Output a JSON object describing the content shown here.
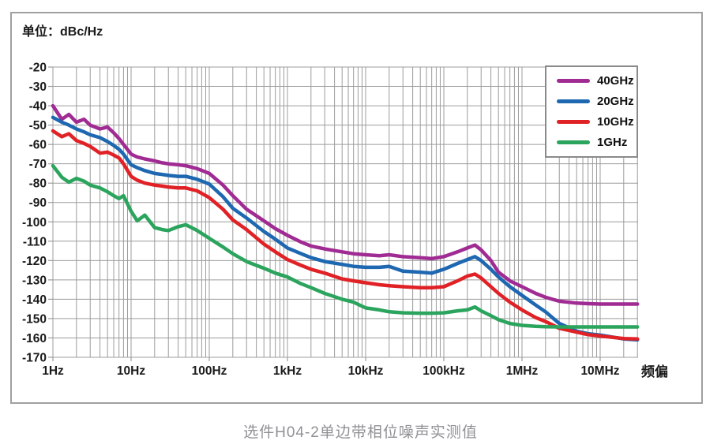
{
  "unit_label": "单位：dBc/Hz",
  "caption": "选件H04-2单边带相位噪声实测值",
  "colors": {
    "frame_border": "#a0a0a0",
    "legend_border": "#8a8a8a",
    "grid": "#9c9c9c",
    "axis_text": "#1a1a1a",
    "caption_text": "#8f9194"
  },
  "chart_data": {
    "type": "line",
    "title": "选件H04-2单边带相位噪声实测值",
    "x_axis": {
      "label": "频偏",
      "scale": "log",
      "min": 1,
      "max": 30000000,
      "tick_values": [
        1,
        10,
        100,
        1000,
        10000,
        100000,
        1000000,
        10000000
      ],
      "tick_labels": [
        "1Hz",
        "10Hz",
        "100Hz",
        "1kHz",
        "10kHz",
        "100kHz",
        "1MHz",
        "10MHz"
      ]
    },
    "y_axis": {
      "unit": "dBc/Hz",
      "min": -170,
      "max": -20,
      "tick_step": 10,
      "tick_values": [
        -20,
        -30,
        -40,
        -50,
        -60,
        -70,
        -80,
        -90,
        -100,
        -110,
        -120,
        -130,
        -140,
        -150,
        -160,
        -170
      ]
    },
    "grid": "log-minor-on",
    "legend_position": "top-right",
    "frequencies_hz": [
      1,
      1.3,
      1.6,
      2,
      2.5,
      3,
      4,
      5,
      6,
      7,
      8,
      10,
      12,
      15,
      20,
      25,
      30,
      40,
      50,
      70,
      100,
      150,
      200,
      300,
      500,
      700,
      1000,
      1500,
      2000,
      3000,
      5000,
      7000,
      10000,
      15000,
      20000,
      30000,
      50000,
      70000,
      100000,
      150000,
      200000,
      250000,
      300000,
      400000,
      500000,
      700000,
      1000000,
      1500000,
      2000000,
      3000000,
      5000000,
      7000000,
      10000000,
      20000000,
      30000000
    ],
    "series": [
      {
        "name": "40GHz",
        "color": "#A02B93",
        "values": [
          -40,
          -47,
          -44.5,
          -48.5,
          -47,
          -50,
          -52,
          -51,
          -54,
          -57,
          -60,
          -65,
          -66.5,
          -67.5,
          -68.5,
          -69.5,
          -70,
          -70.5,
          -71,
          -72.5,
          -75,
          -81,
          -86.5,
          -93.5,
          -99.5,
          -103.5,
          -107,
          -110.5,
          -112.5,
          -114,
          -115.5,
          -116.5,
          -117,
          -117.5,
          -117,
          -118,
          -118.5,
          -119,
          -118,
          -115.5,
          -113.5,
          -112,
          -114.5,
          -120,
          -126,
          -130.5,
          -133.5,
          -137,
          -139,
          -141,
          -142,
          -142.3,
          -142.5,
          -142.5,
          -142.5
        ]
      },
      {
        "name": "20GHz",
        "color": "#1E67B1",
        "values": [
          -46,
          -48.5,
          -50,
          -52,
          -53.5,
          -55,
          -56.5,
          -58.5,
          -60.5,
          -62.5,
          -65,
          -70.5,
          -72,
          -73.5,
          -75,
          -75.5,
          -76,
          -76.5,
          -76.5,
          -78,
          -80.5,
          -87,
          -93,
          -98,
          -105,
          -109,
          -113.5,
          -116.5,
          -118.5,
          -120.5,
          -122,
          -123,
          -123.5,
          -123.5,
          -123,
          -125.5,
          -126,
          -126.5,
          -124.5,
          -121.5,
          -119.5,
          -118,
          -120,
          -124.5,
          -128.5,
          -133.5,
          -138,
          -143,
          -146.5,
          -152.5,
          -156.5,
          -157.8,
          -158.5,
          -160.5,
          -161
        ]
      },
      {
        "name": "10GHz",
        "color": "#E02126",
        "values": [
          -53,
          -56,
          -54.5,
          -58,
          -59.5,
          -61,
          -64.5,
          -64,
          -65.5,
          -67,
          -70,
          -76.5,
          -78.5,
          -80,
          -81,
          -81.5,
          -82,
          -82.5,
          -82.5,
          -84,
          -87.5,
          -93.5,
          -99,
          -104,
          -111.5,
          -115.5,
          -119.5,
          -122.5,
          -124.5,
          -126.5,
          -129.5,
          -130.5,
          -131.5,
          -132.5,
          -133,
          -133.5,
          -134,
          -134,
          -133.5,
          -130.5,
          -128,
          -127,
          -129,
          -133.5,
          -137,
          -141.5,
          -145.5,
          -149.5,
          -151.5,
          -155,
          -157,
          -158.3,
          -159,
          -160.3,
          -160.5
        ]
      },
      {
        "name": "1GHz",
        "color": "#2BA45D",
        "values": [
          -71,
          -77,
          -79.5,
          -77.5,
          -79,
          -81,
          -82.5,
          -84.5,
          -86.5,
          -88,
          -86.5,
          -94.5,
          -99.5,
          -96.5,
          -103,
          -104,
          -104.5,
          -102.5,
          -101.5,
          -104.5,
          -108.5,
          -113,
          -116.5,
          -120.5,
          -124,
          -126.5,
          -128.5,
          -132,
          -134,
          -137,
          -140,
          -141.5,
          -144.5,
          -145.5,
          -146.5,
          -147,
          -147.2,
          -147.2,
          -147,
          -146,
          -145.5,
          -144,
          -146,
          -148.5,
          -150.5,
          -152.5,
          -153.5,
          -154,
          -154.2,
          -154.3,
          -154.3,
          -154.3,
          -154.3,
          -154.3,
          -154.3
        ]
      }
    ]
  }
}
